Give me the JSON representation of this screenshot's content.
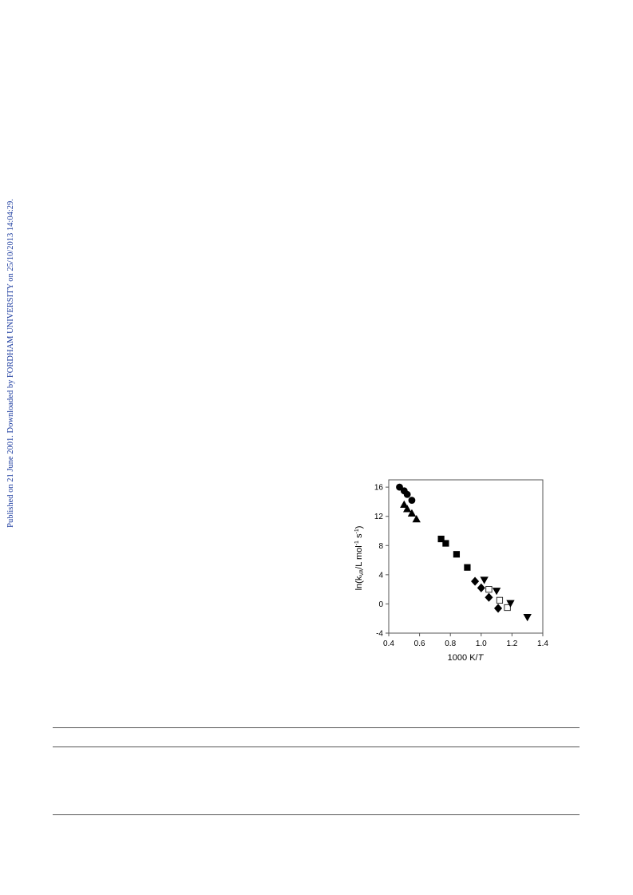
{
  "sidebar": {
    "text": "Published on 21 June 2001. Downloaded by FORDHAM UNIVERSITY on 25/10/2013 14:04:29.",
    "color": "#1a3a9e"
  },
  "chart_data": {
    "type": "scatter",
    "xlabel": "1000 K/T",
    "ylabel_prefix": "ln(k",
    "ylabel_sub": "VA",
    "ylabel_mid": "/L mol",
    "ylabel_sup1": "-1",
    "ylabel_s": " s",
    "ylabel_sup2": "-1",
    "ylabel_suffix": ")",
    "xlim": [
      0.4,
      1.4
    ],
    "ylim": [
      -4,
      17
    ],
    "xticks": [
      "0.4",
      "0.6",
      "0.8",
      "1.0",
      "1.2",
      "1.4"
    ],
    "xtick_values": [
      0.4,
      0.6,
      0.8,
      1.0,
      1.2,
      1.4
    ],
    "yticks": [
      "-4",
      "0",
      "4",
      "8",
      "12",
      "16"
    ],
    "ytick_values": [
      -4,
      0,
      4,
      8,
      12,
      16
    ],
    "grid": false,
    "legend": "none",
    "series": [
      {
        "marker": "circle",
        "fill": "filled",
        "x": [
          0.47,
          0.5,
          0.52,
          0.55
        ],
        "y": [
          16.0,
          15.5,
          15.0,
          14.2
        ]
      },
      {
        "marker": "triangle-up",
        "fill": "filled",
        "x": [
          0.5,
          0.52,
          0.55,
          0.58
        ],
        "y": [
          13.6,
          13.0,
          12.4,
          11.6
        ]
      },
      {
        "marker": "square",
        "fill": "filled",
        "x": [
          0.74,
          0.77,
          0.84,
          0.91
        ],
        "y": [
          8.9,
          8.3,
          6.8,
          5.0
        ]
      },
      {
        "marker": "diamond",
        "fill": "filled",
        "x": [
          0.96,
          1.0,
          1.05,
          1.11
        ],
        "y": [
          3.1,
          2.2,
          0.9,
          -0.6
        ]
      },
      {
        "marker": "square",
        "fill": "open",
        "x": [
          1.05,
          1.12,
          1.17
        ],
        "y": [
          2.0,
          0.5,
          -0.5
        ]
      },
      {
        "marker": "triangle-down",
        "fill": "filled",
        "x": [
          1.02,
          1.1,
          1.19,
          1.3
        ],
        "y": [
          3.3,
          1.8,
          0.1,
          -1.8
        ]
      }
    ]
  }
}
